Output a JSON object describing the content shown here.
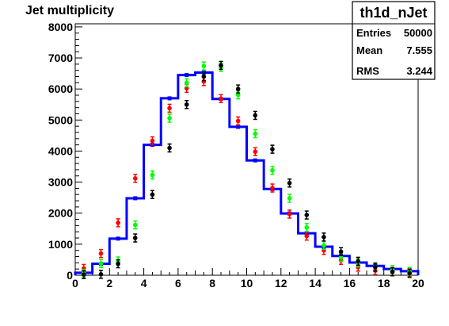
{
  "chart_data": {
    "type": "histogram",
    "title": "Jet multiplicity",
    "xlim": [
      0,
      20
    ],
    "ylim": [
      0,
      8100
    ],
    "x_ticks": [
      "0",
      "2",
      "4",
      "6",
      "8",
      "10",
      "12",
      "14",
      "16",
      "18",
      "20"
    ],
    "y_ticks": [
      "0",
      "1000",
      "2000",
      "3000",
      "4000",
      "5000",
      "6000",
      "7000",
      "8000"
    ],
    "bin_edges": [
      0,
      1,
      2,
      3,
      4,
      5,
      6,
      7,
      8,
      9,
      10,
      11,
      12,
      13,
      14,
      15,
      16,
      17,
      18,
      19,
      20
    ],
    "histogram": {
      "color": "#0000ff",
      "values": [
        80,
        370,
        1180,
        2480,
        4200,
        5700,
        6450,
        6530,
        5680,
        4780,
        3700,
        2780,
        1990,
        1350,
        920,
        620,
        410,
        300,
        200,
        130
      ]
    },
    "series": [
      {
        "color": "#ff0000",
        "x": [
          0.5,
          1.5,
          2.5,
          3.5,
          4.5,
          5.5,
          6.5,
          7.5,
          8.5,
          9.5,
          10.5,
          11.5,
          12.5,
          13.5,
          14.5,
          15.5,
          16.5,
          17.5,
          18.5,
          19.5
        ],
        "values": [
          220,
          700,
          1690,
          3120,
          4330,
          5380,
          6020,
          6240,
          5690,
          4970,
          3980,
          2810,
          1970,
          1260,
          800,
          480,
          260,
          150,
          120,
          90
        ]
      },
      {
        "color": "#00ff00",
        "x": [
          0.5,
          1.5,
          2.5,
          3.5,
          4.5,
          5.5,
          6.5,
          7.5,
          8.5,
          9.5,
          10.5,
          11.5,
          12.5,
          13.5,
          14.5,
          15.5,
          16.5,
          17.5,
          18.5,
          19.5
        ],
        "values": [
          60,
          380,
          460,
          1620,
          3230,
          5060,
          6200,
          6740,
          6700,
          5810,
          4560,
          3380,
          2480,
          1540,
          960,
          580,
          400,
          270,
          180,
          120
        ]
      },
      {
        "color": "#000000",
        "x": [
          0.5,
          1.5,
          2.5,
          3.5,
          4.5,
          5.5,
          6.5,
          7.5,
          8.5,
          9.5,
          10.5,
          11.5,
          12.5,
          13.5,
          14.5,
          15.5,
          16.5,
          17.5,
          18.5,
          19.5
        ],
        "values": [
          20,
          30,
          370,
          1200,
          2600,
          4100,
          5500,
          6400,
          6760,
          6000,
          5150,
          4060,
          2970,
          1940,
          1230,
          760,
          450,
          260,
          110,
          60
        ]
      }
    ],
    "stats": {
      "name": "th1d_nJet",
      "rows": [
        {
          "label": "Entries",
          "value": "50000"
        },
        {
          "label": "Mean",
          "value": "7.555"
        },
        {
          "label": "RMS",
          "value": "3.244"
        }
      ]
    }
  }
}
